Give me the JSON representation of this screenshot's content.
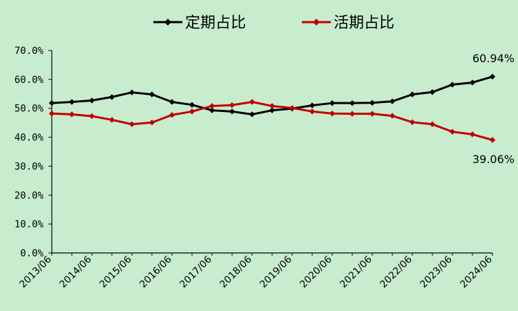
{
  "chart_data": {
    "type": "line",
    "categories": [
      "2013/06",
      "2014/06",
      "2015/06",
      "2016/06",
      "2017/06",
      "2018/06",
      "2019/06",
      "2020/06",
      "2021/06",
      "2022/06",
      "2023/06",
      "2024/06"
    ],
    "x": [
      "2013/06",
      "2013/12",
      "2014/06",
      "2014/12",
      "2015/06",
      "2015/12",
      "2016/06",
      "2016/12",
      "2017/06",
      "2017/12",
      "2018/06",
      "2018/12",
      "2019/06",
      "2019/12",
      "2020/06",
      "2020/12",
      "2021/06",
      "2021/12",
      "2022/06",
      "2022/12",
      "2023/06",
      "2023/12",
      "2024/06"
    ],
    "series": [
      {
        "name": "定期占比",
        "color": "#000000",
        "values": [
          51.8,
          52.2,
          52.7,
          53.9,
          55.5,
          54.8,
          52.2,
          51.2,
          49.3,
          48.9,
          47.9,
          49.3,
          49.9,
          51.0,
          51.8,
          51.8,
          51.9,
          52.4,
          54.8,
          55.6,
          58.2,
          58.9,
          60.94
        ]
      },
      {
        "name": "活期占比",
        "color": "#c00000",
        "values": [
          48.2,
          47.9,
          47.3,
          46.0,
          44.5,
          45.1,
          47.7,
          48.9,
          50.8,
          51.1,
          52.2,
          50.8,
          50.1,
          48.9,
          48.2,
          48.1,
          48.1,
          47.4,
          45.2,
          44.5,
          41.9,
          41.0,
          39.06
        ]
      }
    ],
    "end_labels": [
      "60.94%",
      "39.06%"
    ],
    "ytick_labels": [
      "0.0%",
      "10.0%",
      "20.0%",
      "30.0%",
      "40.0%",
      "50.0%",
      "60.0%",
      "70.0%"
    ],
    "ylim": [
      0,
      70
    ],
    "legend_position": "top-center",
    "grid": false
  }
}
